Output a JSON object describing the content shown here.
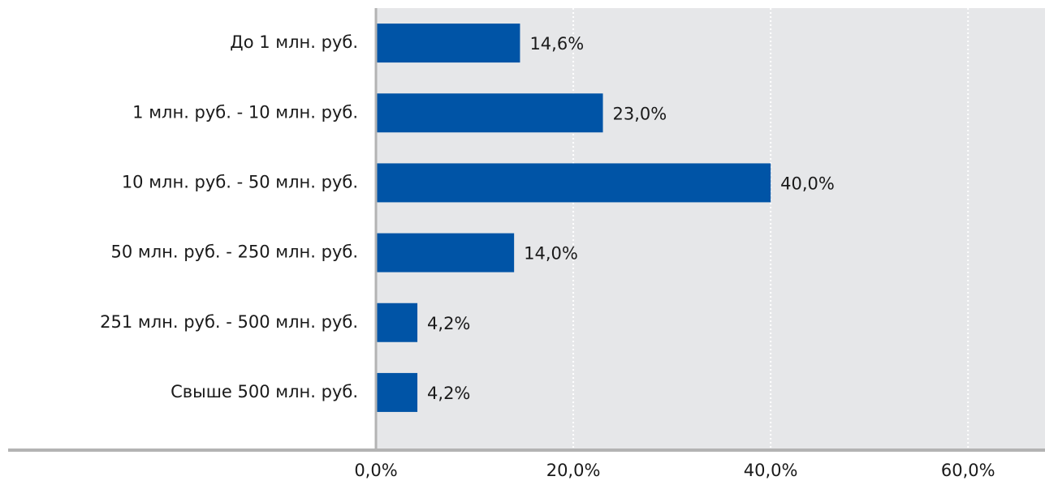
{
  "chart_data": {
    "type": "barh",
    "categories": [
      "До 1 млн. руб.",
      "1 млн. руб. - 10 млн. руб.",
      "10 млн. руб. - 50 млн. руб.",
      "50 млн. руб. - 250 млн. руб.",
      "251 млн. руб. - 500 млн. руб.",
      "Свыше 500 млн. руб."
    ],
    "values": [
      14.6,
      23.0,
      40.0,
      14.0,
      4.2,
      4.2
    ],
    "value_labels": [
      "14,6%",
      "23,0%",
      "40,0%",
      "14,0%",
      "4,2%",
      "4,2%"
    ],
    "color": "#0054a6",
    "xlim": [
      0,
      67.8
    ],
    "xticks": [
      {
        "value": 0,
        "label": "0,0%"
      },
      {
        "value": 20,
        "label": "20,0%"
      },
      {
        "value": 40,
        "label": "40,0%"
      },
      {
        "value": 60,
        "label": "60,0%"
      }
    ],
    "grid": true
  }
}
